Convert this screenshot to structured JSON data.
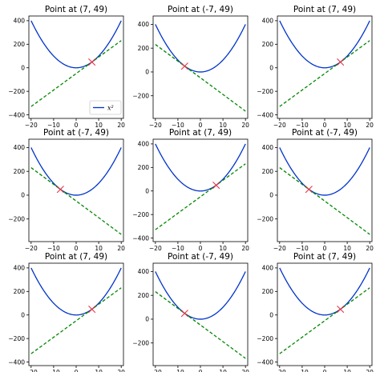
{
  "colors": {
    "curve": "#0033cc",
    "tangent": "#008800",
    "marker": "#e8334a",
    "axes": "#000000"
  },
  "legend": {
    "label": "x²",
    "location": "lower right"
  },
  "chart_data": [
    {
      "type": "line",
      "title": "Point at (7, 49)",
      "point": [
        7,
        49
      ],
      "xlim": [
        -21,
        21
      ],
      "ylim": [
        -430,
        440
      ],
      "xticks": [
        -20,
        -10,
        0,
        10,
        20
      ],
      "yticks": [
        -400,
        -200,
        0,
        200,
        400
      ],
      "x": [
        -20,
        -15,
        -10,
        -5,
        0,
        5,
        10,
        15,
        20
      ],
      "series": [
        {
          "name": "x²",
          "values": [
            400,
            225,
            100,
            25,
            0,
            25,
            100,
            225,
            400
          ]
        }
      ],
      "tangent": {
        "x": [
          -20,
          20
        ],
        "y": [
          -329,
          231
        ]
      },
      "legend": true
    },
    {
      "type": "line",
      "title": "Point at (-7, 49)",
      "point": [
        -7,
        49
      ],
      "xlim": [
        -21,
        21
      ],
      "ylim": [
        -390,
        470
      ],
      "xticks": [
        -20,
        -10,
        0,
        10,
        20
      ],
      "yticks": [
        -400,
        -200,
        0,
        200,
        400
      ],
      "x": [
        -20,
        -15,
        -10,
        -5,
        0,
        5,
        10,
        15,
        20
      ],
      "series": [
        {
          "values": [
            400,
            225,
            100,
            25,
            0,
            25,
            100,
            225,
            400
          ]
        }
      ],
      "tangent": {
        "x": [
          -20,
          20
        ],
        "y": [
          231,
          -329
        ]
      },
      "legend": false
    },
    {
      "type": "line",
      "title": "Point at (7, 49)",
      "point": [
        7,
        49
      ],
      "xlim": [
        -21,
        21
      ],
      "ylim": [
        -430,
        440
      ],
      "xticks": [
        -20,
        -10,
        0,
        10,
        20
      ],
      "yticks": [
        -400,
        -200,
        0,
        200,
        400
      ],
      "x": [
        -20,
        -15,
        -10,
        -5,
        0,
        5,
        10,
        15,
        20
      ],
      "series": [
        {
          "values": [
            400,
            225,
            100,
            25,
            0,
            25,
            100,
            225,
            400
          ]
        }
      ],
      "tangent": {
        "x": [
          -20,
          20
        ],
        "y": [
          -329,
          231
        ]
      },
      "legend": false
    },
    {
      "type": "line",
      "title": "Point at (-7, 49)",
      "point": [
        -7,
        49
      ],
      "xlim": [
        -21,
        21
      ],
      "ylim": [
        -390,
        470
      ],
      "xticks": [
        -20,
        -10,
        0,
        10,
        20
      ],
      "yticks": [
        -400,
        -200,
        0,
        200,
        400
      ],
      "x": [
        -20,
        -15,
        -10,
        -5,
        0,
        5,
        10,
        15,
        20
      ],
      "series": [
        {
          "values": [
            400,
            225,
            100,
            25,
            0,
            25,
            100,
            225,
            400
          ]
        }
      ],
      "tangent": {
        "x": [
          -20,
          20
        ],
        "y": [
          231,
          -329
        ]
      },
      "legend": false
    },
    {
      "type": "line",
      "title": "Point at (7, 49)",
      "point": [
        7,
        49
      ],
      "xlim": [
        -21,
        21
      ],
      "ylim": [
        -430,
        440
      ],
      "xticks": [
        -20,
        -10,
        0,
        10,
        20
      ],
      "yticks": [
        -400,
        -200,
        0,
        200,
        400
      ],
      "x": [
        -20,
        -15,
        -10,
        -5,
        0,
        5,
        10,
        15,
        20
      ],
      "series": [
        {
          "values": [
            400,
            225,
            100,
            25,
            0,
            25,
            100,
            225,
            400
          ]
        }
      ],
      "tangent": {
        "x": [
          -20,
          20
        ],
        "y": [
          -329,
          231
        ]
      },
      "legend": false
    },
    {
      "type": "line",
      "title": "Point at (-7, 49)",
      "point": [
        -7,
        49
      ],
      "xlim": [
        -21,
        21
      ],
      "ylim": [
        -390,
        470
      ],
      "xticks": [
        -20,
        -10,
        0,
        10,
        20
      ],
      "yticks": [
        -400,
        -200,
        0,
        200,
        400
      ],
      "x": [
        -20,
        -15,
        -10,
        -5,
        0,
        5,
        10,
        15,
        20
      ],
      "series": [
        {
          "values": [
            400,
            225,
            100,
            25,
            0,
            25,
            100,
            225,
            400
          ]
        }
      ],
      "tangent": {
        "x": [
          -20,
          20
        ],
        "y": [
          231,
          -329
        ]
      },
      "legend": false
    },
    {
      "type": "line",
      "title": "Point at (7, 49)",
      "point": [
        7,
        49
      ],
      "xlim": [
        -21,
        21
      ],
      "ylim": [
        -430,
        440
      ],
      "xticks": [
        -20,
        -10,
        0,
        10,
        20
      ],
      "yticks": [
        -400,
        -200,
        0,
        200,
        400
      ],
      "x": [
        -20,
        -15,
        -10,
        -5,
        0,
        5,
        10,
        15,
        20
      ],
      "series": [
        {
          "values": [
            400,
            225,
            100,
            25,
            0,
            25,
            100,
            225,
            400
          ]
        }
      ],
      "tangent": {
        "x": [
          -20,
          20
        ],
        "y": [
          -329,
          231
        ]
      },
      "legend": false
    },
    {
      "type": "line",
      "title": "Point at (-7, 49)",
      "point": [
        -7,
        49
      ],
      "xlim": [
        -21,
        21
      ],
      "ylim": [
        -390,
        470
      ],
      "xticks": [
        -20,
        -10,
        0,
        10,
        20
      ],
      "yticks": [
        -400,
        -200,
        0,
        200,
        400
      ],
      "x": [
        -20,
        -15,
        -10,
        -5,
        0,
        5,
        10,
        15,
        20
      ],
      "series": [
        {
          "values": [
            400,
            225,
            100,
            25,
            0,
            25,
            100,
            225,
            400
          ]
        }
      ],
      "tangent": {
        "x": [
          -20,
          20
        ],
        "y": [
          231,
          -329
        ]
      },
      "legend": false
    },
    {
      "type": "line",
      "title": "Point at (7, 49)",
      "point": [
        7,
        49
      ],
      "xlim": [
        -21,
        21
      ],
      "ylim": [
        -430,
        440
      ],
      "xticks": [
        -20,
        -10,
        0,
        10,
        20
      ],
      "yticks": [
        -400,
        -200,
        0,
        200,
        400
      ],
      "x": [
        -20,
        -15,
        -10,
        -5,
        0,
        5,
        10,
        15,
        20
      ],
      "series": [
        {
          "values": [
            400,
            225,
            100,
            25,
            0,
            25,
            100,
            225,
            400
          ]
        }
      ],
      "tangent": {
        "x": [
          -20,
          20
        ],
        "y": [
          -329,
          231
        ]
      },
      "legend": false
    }
  ]
}
